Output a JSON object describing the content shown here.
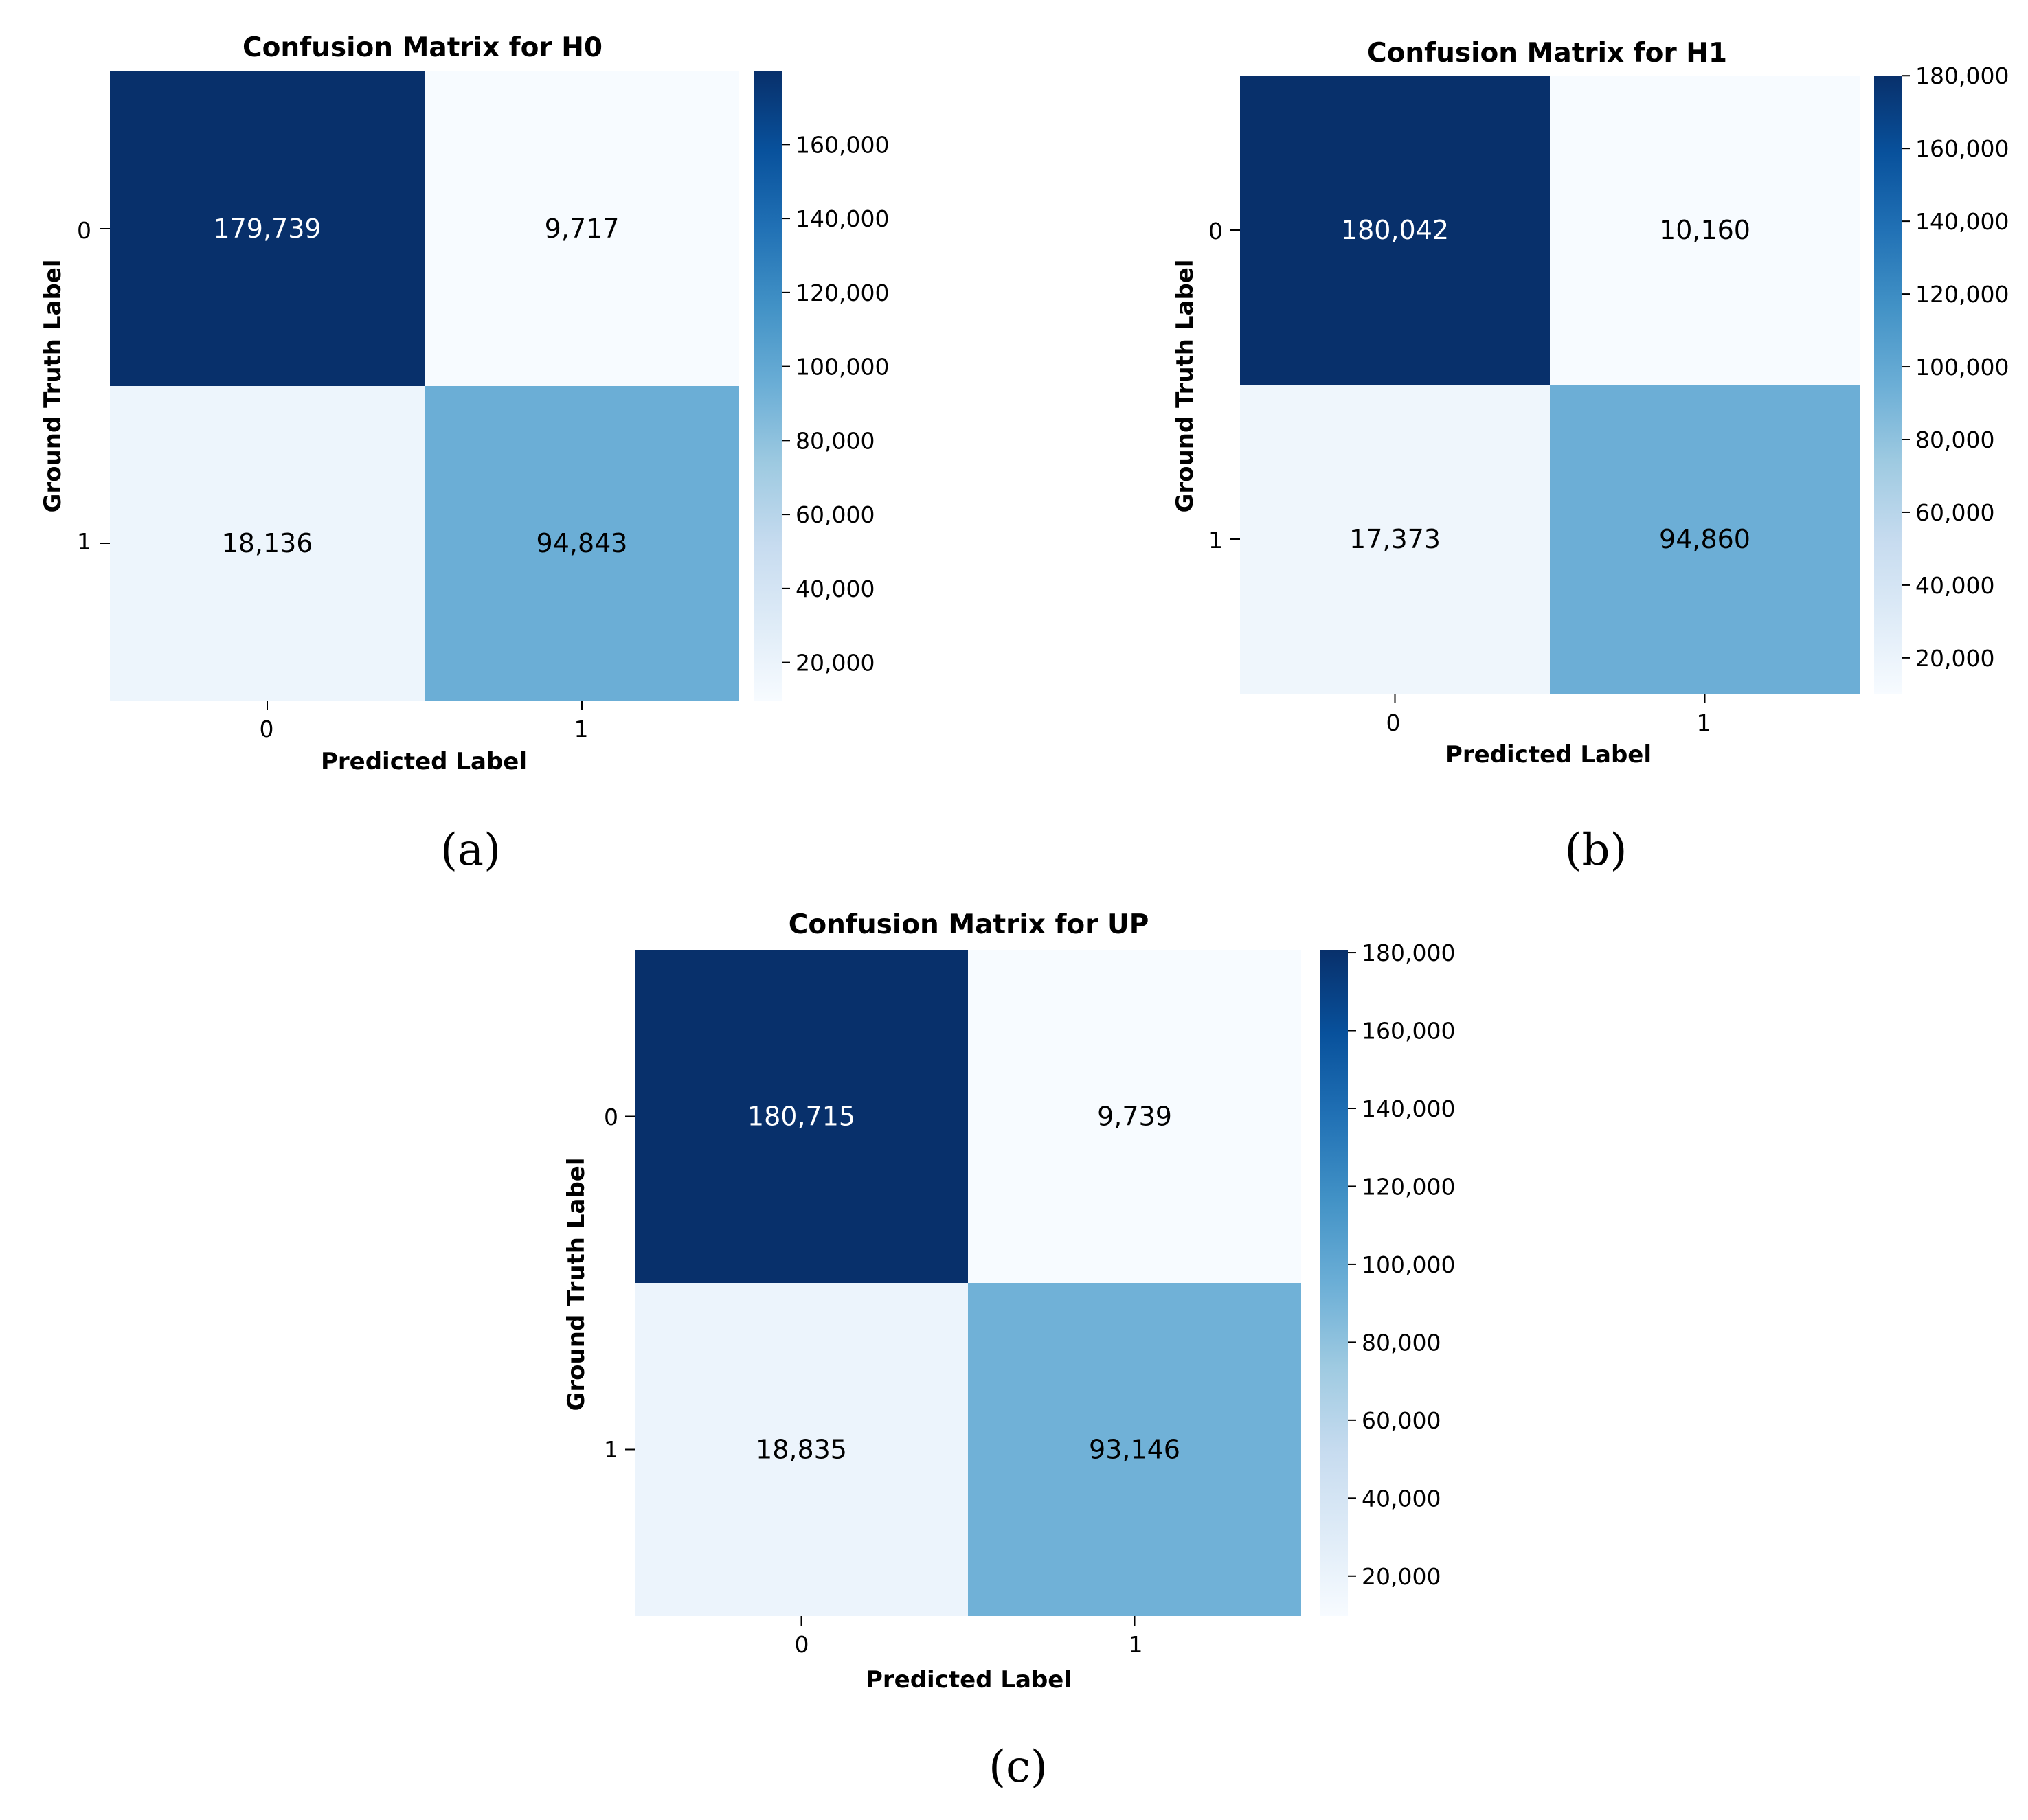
{
  "chart_data": [
    {
      "type": "heatmap",
      "panel_label": "(a)",
      "title": "Confusion Matrix for H0",
      "xlabel": "Predicted Label",
      "ylabel": "Ground Truth Label",
      "x_categories": [
        "0",
        "1"
      ],
      "y_categories": [
        "0",
        "1"
      ],
      "values": [
        [
          179739,
          9717
        ],
        [
          18136,
          94843
        ]
      ],
      "cell_labels": [
        [
          "179,739",
          "9,717"
        ],
        [
          "18,136",
          "94,843"
        ]
      ],
      "colormap": "Blues",
      "colorbar": {
        "range": [
          9717,
          179739
        ],
        "ticks": [
          20000,
          40000,
          60000,
          80000,
          100000,
          120000,
          140000,
          160000
        ],
        "tick_labels": [
          "20,000",
          "40,000",
          "60,000",
          "80,000",
          "100,000",
          "120,000",
          "140,000",
          "160,000"
        ]
      }
    },
    {
      "type": "heatmap",
      "panel_label": "(b)",
      "title": "Confusion Matrix for H1",
      "xlabel": "Predicted Label",
      "ylabel": "Ground Truth Label",
      "x_categories": [
        "0",
        "1"
      ],
      "y_categories": [
        "0",
        "1"
      ],
      "values": [
        [
          180042,
          10160
        ],
        [
          17373,
          94860
        ]
      ],
      "cell_labels": [
        [
          "180,042",
          "10,160"
        ],
        [
          "17,373",
          "94,860"
        ]
      ],
      "colormap": "Blues",
      "colorbar": {
        "range": [
          10160,
          180042
        ],
        "ticks": [
          20000,
          40000,
          60000,
          80000,
          100000,
          120000,
          140000,
          160000,
          180000
        ],
        "tick_labels": [
          "20,000",
          "40,000",
          "60,000",
          "80,000",
          "100,000",
          "120,000",
          "140,000",
          "160,000",
          "180,000"
        ]
      }
    },
    {
      "type": "heatmap",
      "panel_label": "(c)",
      "title": "Confusion Matrix for UP",
      "xlabel": "Predicted Label",
      "ylabel": "Ground Truth Label",
      "x_categories": [
        "0",
        "1"
      ],
      "y_categories": [
        "0",
        "1"
      ],
      "values": [
        [
          180715,
          9739
        ],
        [
          18835,
          93146
        ]
      ],
      "cell_labels": [
        [
          "180,715",
          "9,739"
        ],
        [
          "18,835",
          "93,146"
        ]
      ],
      "colormap": "Blues",
      "colorbar": {
        "range": [
          9739,
          180715
        ],
        "ticks": [
          20000,
          40000,
          60000,
          80000,
          100000,
          120000,
          140000,
          160000,
          180000
        ],
        "tick_labels": [
          "20,000",
          "40,000",
          "60,000",
          "80,000",
          "100,000",
          "120,000",
          "140,000",
          "160,000",
          "180,000"
        ]
      }
    }
  ]
}
